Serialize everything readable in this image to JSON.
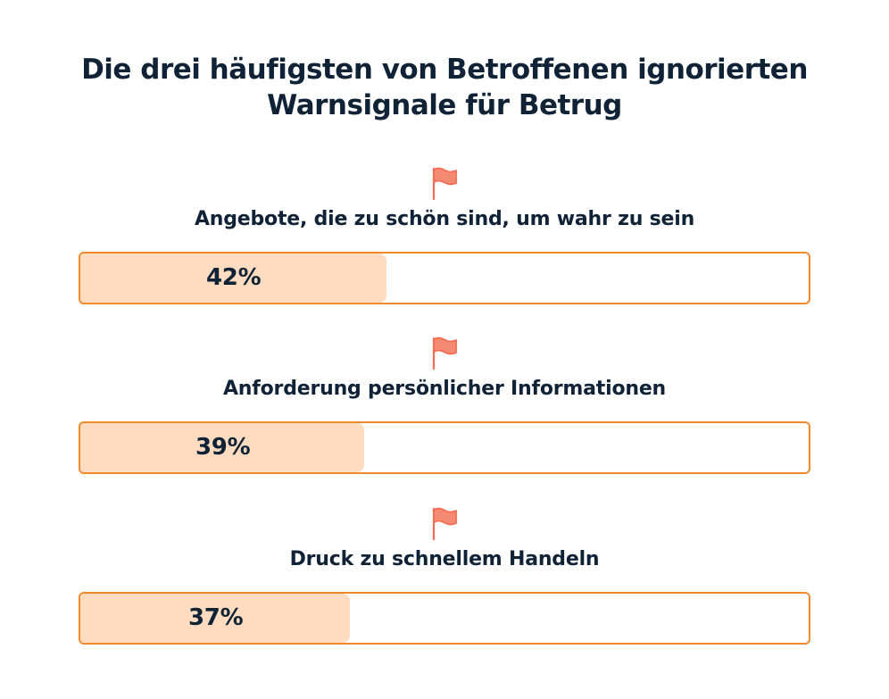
{
  "title": {
    "line1": "Die drei häufigsten von Betroffenen ignorierten",
    "line2": "Warnsignale für Betrug"
  },
  "colors": {
    "bar_border": "#ef8a2c",
    "bar_fill": "#ffdcc0",
    "flag": "#f26b52",
    "text": "#0f2236"
  },
  "icons": [
    "flag-icon"
  ],
  "chart_data": {
    "type": "bar",
    "orientation": "horizontal",
    "title": "Die drei häufigsten von Betroffenen ignorierten Warnsignale für Betrug",
    "categories": [
      "Angebote, die zu schön sind, um wahr zu sein",
      "Anforderung persönlicher Informationen",
      "Druck zu schnellem Handeln"
    ],
    "values": [
      42,
      39,
      37
    ],
    "value_labels": [
      "42%",
      "39%",
      "37%"
    ],
    "xlim": [
      0,
      100
    ],
    "grid": false
  }
}
